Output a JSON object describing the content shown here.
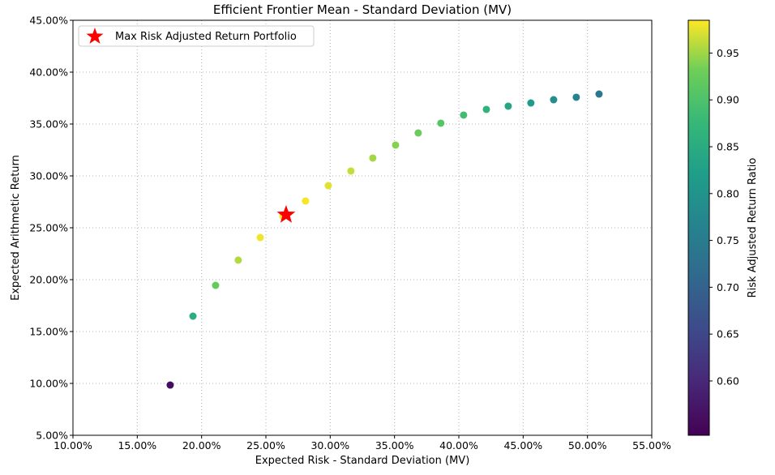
{
  "chart_data": {
    "type": "scatter",
    "title": "Efficient Frontier Mean - Standard Deviation (MV)",
    "xlabel": "Expected Risk - Standard Deviation (MV)",
    "ylabel": "Expected Arithmetic Return",
    "xlim": [
      10,
      55
    ],
    "ylim": [
      5,
      45
    ],
    "xticks": [
      10,
      15,
      20,
      25,
      30,
      35,
      40,
      45,
      50,
      55
    ],
    "xtick_labels": [
      "10.00%",
      "15.00%",
      "20.00%",
      "25.00%",
      "30.00%",
      "35.00%",
      "40.00%",
      "45.00%",
      "50.00%",
      "55.00%"
    ],
    "yticks": [
      5,
      10,
      15,
      20,
      25,
      30,
      35,
      40,
      45
    ],
    "ytick_labels": [
      "5.00%",
      "10.00%",
      "15.00%",
      "20.00%",
      "25.00%",
      "30.00%",
      "35.00%",
      "40.00%",
      "45.00%"
    ],
    "grid": true,
    "points": [
      {
        "x": 17.56,
        "y": 9.84,
        "ratio": 0.56
      },
      {
        "x": 19.33,
        "y": 16.48,
        "ratio": 0.853
      },
      {
        "x": 21.09,
        "y": 19.45,
        "ratio": 0.922
      },
      {
        "x": 22.85,
        "y": 21.88,
        "ratio": 0.957
      },
      {
        "x": 24.56,
        "y": 24.06,
        "ratio": 0.98
      },
      {
        "x": 26.32,
        "y": 26.09,
        "ratio": 0.985
      },
      {
        "x": 28.08,
        "y": 27.58,
        "ratio": 0.982
      },
      {
        "x": 29.85,
        "y": 29.06,
        "ratio": 0.974
      },
      {
        "x": 31.61,
        "y": 30.47,
        "ratio": 0.964
      },
      {
        "x": 33.31,
        "y": 31.72,
        "ratio": 0.952
      },
      {
        "x": 35.08,
        "y": 32.97,
        "ratio": 0.94
      },
      {
        "x": 36.84,
        "y": 34.14,
        "ratio": 0.927
      },
      {
        "x": 38.6,
        "y": 35.08,
        "ratio": 0.909
      },
      {
        "x": 40.37,
        "y": 35.86,
        "ratio": 0.888
      },
      {
        "x": 42.14,
        "y": 36.41,
        "ratio": 0.864
      },
      {
        "x": 43.84,
        "y": 36.72,
        "ratio": 0.838
      },
      {
        "x": 45.6,
        "y": 37.03,
        "ratio": 0.812
      },
      {
        "x": 47.37,
        "y": 37.34,
        "ratio": 0.788
      },
      {
        "x": 49.13,
        "y": 37.58,
        "ratio": 0.765
      },
      {
        "x": 50.9,
        "y": 37.89,
        "ratio": 0.744
      }
    ],
    "highlight": {
      "x": 26.57,
      "y": 26.25,
      "label": "Max Risk Adjusted Return Portfolio",
      "color": "#ff0000"
    },
    "legend_placement": "top-left",
    "colorbar": {
      "label": "Risk Adjusted Return Ratio",
      "range": [
        0.542,
        0.985
      ],
      "colormap": "viridis",
      "ticks": [
        0.6,
        0.65,
        0.7,
        0.75,
        0.8,
        0.85,
        0.9,
        0.95
      ],
      "tick_labels": [
        "0.60",
        "0.65",
        "0.70",
        "0.75",
        "0.80",
        "0.85",
        "0.90",
        "0.95"
      ]
    }
  }
}
